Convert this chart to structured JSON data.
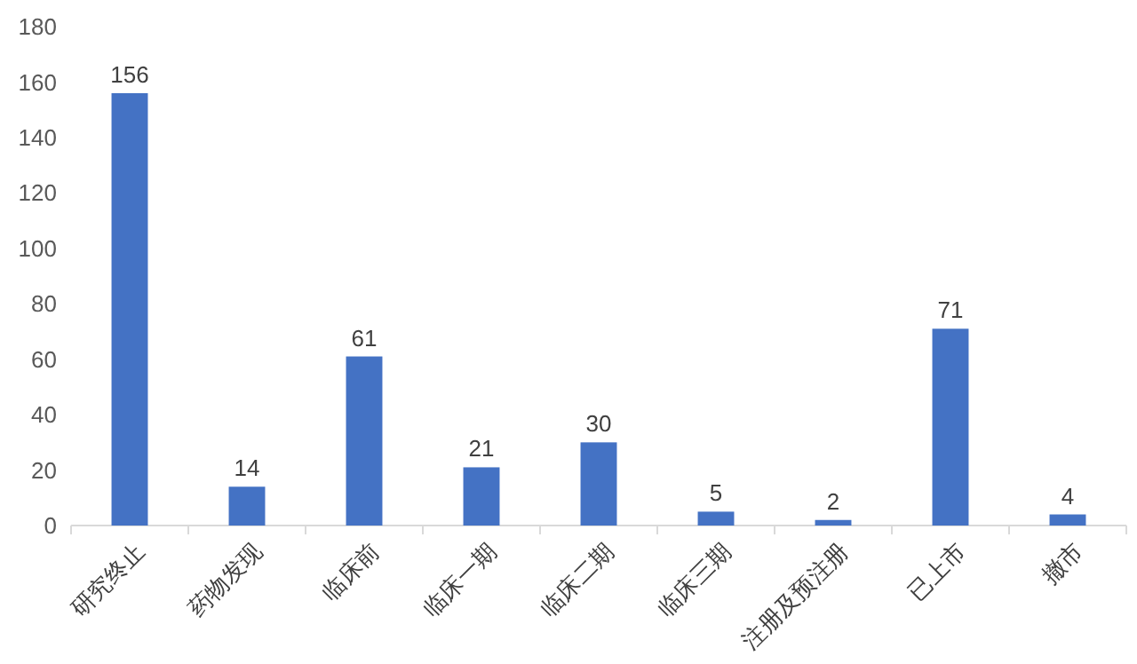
{
  "chart_data": {
    "type": "bar",
    "categories": [
      "研究终止",
      "药物发现",
      "临床前",
      "临床一期",
      "临床二期",
      "临床三期",
      "注册及预注册",
      "已上市",
      "撤市"
    ],
    "values": [
      156,
      14,
      61,
      21,
      30,
      5,
      2,
      71,
      4
    ],
    "color": "#4472c4",
    "ylim": [
      0,
      180
    ],
    "yticks": [
      0,
      20,
      40,
      60,
      80,
      100,
      120,
      140,
      160,
      180
    ],
    "grid": false,
    "data_labels": true
  }
}
